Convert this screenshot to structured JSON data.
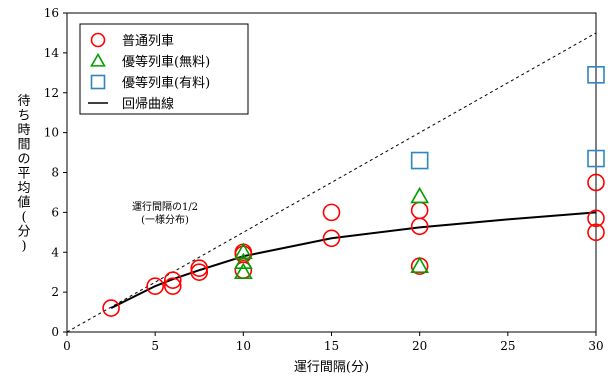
{
  "chart_data": {
    "type": "scatter",
    "xlabel": "運行間隔(分)",
    "ylabel": "待ち時間の平均値(分)",
    "xlim": [
      0,
      30
    ],
    "ylim": [
      0,
      16
    ],
    "x_ticks": [
      0,
      5,
      10,
      15,
      20,
      25,
      30
    ],
    "y_ticks": [
      0,
      2,
      4,
      6,
      8,
      10,
      12,
      14,
      16
    ],
    "grid": false,
    "legend_position": "top-left",
    "colors": {
      "red": "#ff0000",
      "green": "#00a000",
      "blue": "#2e86c1",
      "line": "#000000"
    },
    "series": [
      {
        "name": "普通列車",
        "marker": "circle",
        "color": "#ff0000",
        "points": [
          [
            2.5,
            1.2
          ],
          [
            5,
            2.3
          ],
          [
            6,
            2.3
          ],
          [
            6,
            2.6
          ],
          [
            7.5,
            3.0
          ],
          [
            7.5,
            3.2
          ],
          [
            10,
            3.1
          ],
          [
            10,
            3.9
          ],
          [
            10,
            4.0
          ],
          [
            15,
            4.7
          ],
          [
            15,
            6.0
          ],
          [
            20,
            3.3
          ],
          [
            20,
            5.3
          ],
          [
            20,
            6.1
          ],
          [
            30,
            5.0
          ],
          [
            30,
            5.7
          ],
          [
            30,
            7.5
          ]
        ]
      },
      {
        "name": "優等列車(無料)",
        "marker": "triangle",
        "color": "#00a000",
        "points": [
          [
            10,
            3.0
          ],
          [
            10,
            3.5
          ],
          [
            10,
            4.0
          ],
          [
            20,
            3.3
          ],
          [
            20,
            6.8
          ]
        ]
      },
      {
        "name": "優等列車(有料)",
        "marker": "square",
        "color": "#2e86c1",
        "points": [
          [
            20,
            8.6
          ],
          [
            30,
            8.7
          ],
          [
            30,
            12.9
          ]
        ]
      },
      {
        "name": "回帰曲線",
        "marker": "line",
        "color": "#000000",
        "points": [
          [
            2.5,
            1.2
          ],
          [
            5,
            2.3
          ],
          [
            6,
            2.65
          ],
          [
            7.5,
            3.1
          ],
          [
            10,
            3.8
          ],
          [
            15,
            4.7
          ],
          [
            20,
            5.25
          ],
          [
            25,
            5.65
          ],
          [
            30,
            6.0
          ]
        ]
      }
    ],
    "reference_line": {
      "points": [
        [
          0,
          0
        ],
        [
          30,
          15
        ]
      ],
      "style": "dashed"
    },
    "annotation": {
      "lines": [
        "運行間隔の1/2",
        "(一様分布)"
      ],
      "at": [
        9.2,
        4.7
      ]
    }
  }
}
